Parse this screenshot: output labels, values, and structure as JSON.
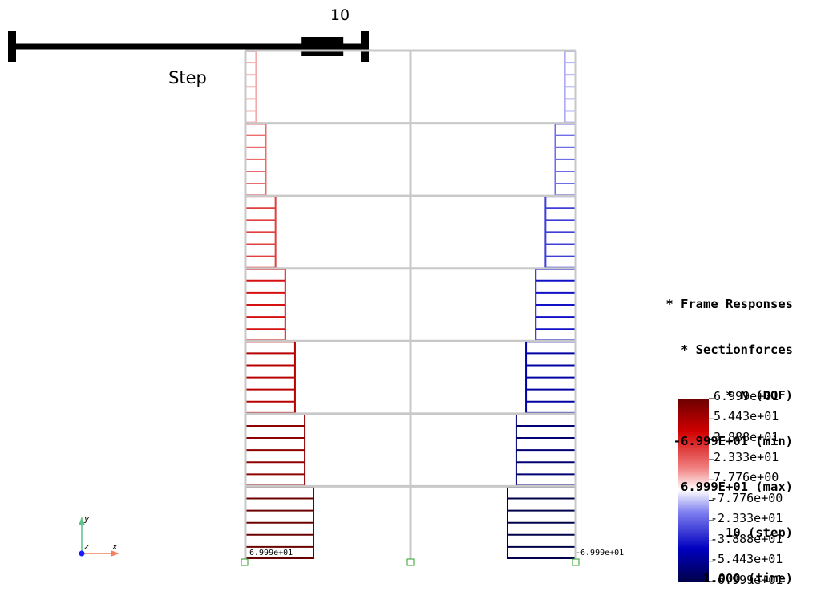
{
  "step_widget": {
    "value": "10",
    "title": "Step",
    "fraction": 0.88
  },
  "info": {
    "lines": [
      "* Frame Responses",
      "* Sectionforces",
      "* N (DOF)",
      "-6.999E+01 (min)",
      "6.999E+01 (max)",
      "10 (step)",
      "1.000 (time)"
    ]
  },
  "colorbar": {
    "labels": [
      "6.999e+01",
      "5.443e+01",
      "3.888e+01",
      "2.333e+01",
      "7.776e+00",
      "-7.776e+00",
      "-2.333e+01",
      "-3.888e+01",
      "-5.443e+01",
      "-6.999e+01"
    ],
    "colors": [
      "#6b0000",
      "#d10000",
      "#f08080",
      "#ffffff",
      "#8080f0",
      "#0000c0",
      "#00004a"
    ]
  },
  "axes": {
    "x": "x",
    "y": "y",
    "z": "z"
  },
  "node_labels": {
    "left": "6.999e+01",
    "right": "-6.999e+01"
  },
  "frame": {
    "stories": 7,
    "left_axial": [
      11,
      21,
      31,
      41,
      51,
      61,
      70
    ],
    "right_axial": [
      -11,
      -21,
      -31,
      -41,
      -51,
      -61,
      -70
    ],
    "max_abs": 69.99
  }
}
